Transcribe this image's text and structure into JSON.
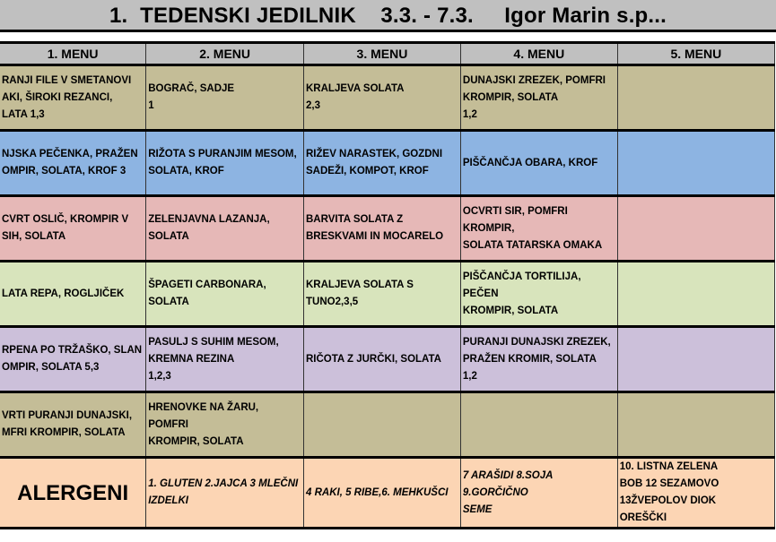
{
  "title": "1.  TEDENSKI JEDILNIK    3.3. - 7.3.     Igor Marin s.p...",
  "headers": [
    "1. MENU",
    "2. MENU",
    "3. MENU",
    "4. MENU",
    "5. MENU"
  ],
  "rows": [
    {
      "color": "#c4bd97",
      "cells": [
        "RANJI FILE V SMETANOVI\nAKI, ŠIROKI REZANCI,\nLATA                   1,3",
        "BOGRAČ, SADJE\n1",
        "KRALJEVA SOLATA\n2,3",
        "DUNAJSKI ZREZEK, POMFRI\nKROMPIR, SOLATA\n1,2",
        ""
      ]
    },
    {
      "color": "#8db4e2",
      "cells": [
        "NJSKA PEČENKA, PRAŽEN\nOMPIR, SOLATA, KROF 3",
        "RIŽOTA S PURANJIM MESOM,\nSOLATA, KROF",
        "RIŽEV NARASTEK, GOZDNI\nSADEŽI, KOMPOT, KROF",
        "PIŠČANČJA OBARA, KROF",
        ""
      ]
    },
    {
      "color": "#e6b8b7",
      "cells": [
        "CVRT OSLIČ, KROMPIR V\nSIH, SOLATA",
        "ZELENJAVNA LAZANJA,\nSOLATA",
        "BARVITA SOLATA Z\nBRESKVAMI IN MOCARELO",
        "OCVRTI SIR, POMFRI KROMPIR,\nSOLATA TATARSKA OMAKA",
        ""
      ]
    },
    {
      "color": "#d8e4bc",
      "cells": [
        "LATA REPA, ROGLJIČEK",
        "ŠPAGETI CARBONARA, SOLATA",
        "KRALJEVA SOLATA S\nTUNO2,3,5",
        "PIŠČANČJA TORTILIJA, PEČEN\nKROMPIR, SOLATA",
        ""
      ]
    },
    {
      "color": "#ccc0da",
      "cells": [
        "RPENA PO TRŽAŠKO, SLAN\nOMPIR, SOLATA    5,3",
        "PASULJ S SUHIM MESOM,\nKREMNA REZINA\n1,2,3",
        "RIČOTA Z JURČKI, SOLATA",
        "PURANJI DUNAJSKI ZREZEK,\nPRAŽEN KROMIR, SOLATA\n1,2",
        ""
      ]
    },
    {
      "color": "#c4bd97",
      "cells": [
        "VRTI PURANJI DUNAJSKI,\nMFRI KROMPIR, SOLATA",
        "HRENOVKE NA ŽARU, POMFRI\nKROMPIR, SOLATA",
        "",
        "",
        ""
      ]
    }
  ],
  "allergens": {
    "label": "ALERGENI",
    "cells": [
      "1. GLUTEN 2.JAJCA 3 MLEČNI\nIZDELKI",
      "4 RAKI, 5 RIBE,6. MEHKUŠCI",
      "7 ARAŠIDI 8.SOJA 9.GORČIČNO\nSEME",
      "10. LISTNA ZELENA\nBOB 12 SEZAMOVO\n13ŽVEPOLOV DIOK\nOREŠČKI"
    ]
  }
}
